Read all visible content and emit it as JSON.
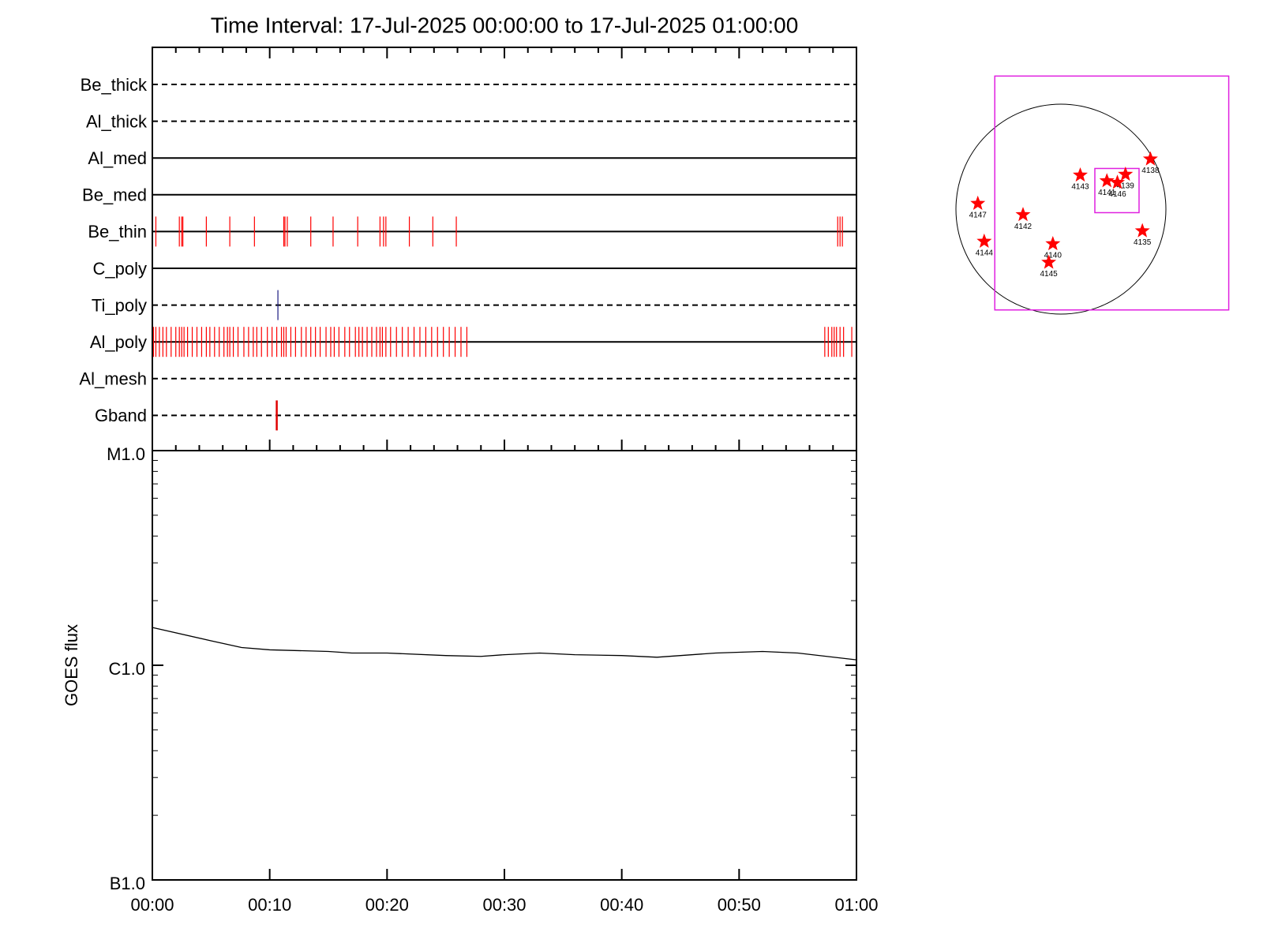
{
  "chart_data": [
    {
      "type": "timeline",
      "title": "Time Interval: 17-Jul-2025 00:00:00 to 17-Jul-2025 01:00:00",
      "xlim": [
        0,
        60
      ],
      "rows": [
        {
          "name": "Be_thick",
          "line": "dashed",
          "color": "#ff0000",
          "events": []
        },
        {
          "name": "Al_thick",
          "line": "dashed",
          "color": "#ff0000",
          "events": []
        },
        {
          "name": "Al_med",
          "line": "solid",
          "color": "#ff0000",
          "events": []
        },
        {
          "name": "Be_med",
          "line": "solid",
          "color": "#ff0000",
          "events": []
        },
        {
          "name": "Be_thin",
          "line": "solid",
          "color": "#ff0000",
          "events": [
            0.3,
            2.3,
            2.5,
            2.6,
            4.6,
            6.6,
            8.7,
            11.2,
            11.3,
            11.5,
            13.5,
            15.4,
            17.5,
            19.4,
            19.7,
            19.9,
            21.9,
            23.9,
            25.9,
            58.4,
            58.6,
            58.8
          ]
        },
        {
          "name": "C_poly",
          "line": "solid",
          "color": "#ff0000",
          "events": []
        },
        {
          "name": "Ti_poly",
          "line": "dashed",
          "color": "#1a1a80",
          "events": [
            10.7
          ]
        },
        {
          "name": "Al_poly",
          "line": "solid",
          "color": "#ff0000",
          "events": [
            0.1,
            0.3,
            0.6,
            0.9,
            1.2,
            1.6,
            2.0,
            2.3,
            2.5,
            2.7,
            3.0,
            3.4,
            3.8,
            4.2,
            4.6,
            4.9,
            5.3,
            5.7,
            6.1,
            6.4,
            6.6,
            6.9,
            7.3,
            7.8,
            8.2,
            8.6,
            8.9,
            9.3,
            9.8,
            10.2,
            10.6,
            11.0,
            11.2,
            11.4,
            11.8,
            12.2,
            12.7,
            13.1,
            13.5,
            13.9,
            14.3,
            14.8,
            15.2,
            15.5,
            15.9,
            16.4,
            16.8,
            17.3,
            17.6,
            17.9,
            18.3,
            18.7,
            19.1,
            19.4,
            19.6,
            19.9,
            20.3,
            20.8,
            21.3,
            21.8,
            22.3,
            22.8,
            23.3,
            23.8,
            24.3,
            24.8,
            25.3,
            25.8,
            26.3,
            26.8,
            57.3,
            57.6,
            57.9,
            58.1,
            58.3,
            58.6,
            58.9,
            59.6
          ]
        },
        {
          "name": "Al_mesh",
          "line": "dashed",
          "color": "#ff0000",
          "events": []
        },
        {
          "name": "Gband",
          "line": "dashed",
          "color": "#e00000",
          "events": [
            10.6
          ]
        }
      ]
    },
    {
      "type": "line",
      "y_label": "GOES flux",
      "x": [
        0,
        5,
        7.6,
        10,
        15,
        17,
        20,
        25,
        28,
        30,
        33,
        36,
        40,
        43,
        45,
        48,
        52,
        55,
        60
      ],
      "values": [
        1.5e-06,
        1.3e-06,
        1.21e-06,
        1.18e-06,
        1.16e-06,
        1.14e-06,
        1.14e-06,
        1.11e-06,
        1.1e-06,
        1.12e-06,
        1.14e-06,
        1.12e-06,
        1.11e-06,
        1.09e-06,
        1.11e-06,
        1.14e-06,
        1.16e-06,
        1.14e-06,
        1.06e-06
      ],
      "color": "#000000",
      "xlim": [
        0,
        60
      ],
      "xticks": [
        {
          "value": 0,
          "label": "00:00"
        },
        {
          "value": 10,
          "label": "00:10"
        },
        {
          "value": 20,
          "label": "00:20"
        },
        {
          "value": 30,
          "label": "00:30"
        },
        {
          "value": 40,
          "label": "00:40"
        },
        {
          "value": 50,
          "label": "00:50"
        },
        {
          "value": 60,
          "label": "01:00"
        }
      ],
      "ylim": [
        1e-07,
        1e-05
      ],
      "yticks": [
        {
          "value": 1e-05,
          "label": "M1.0"
        },
        {
          "value": 1e-06,
          "label": "C1.0"
        },
        {
          "value": 1e-07,
          "label": "B1.0"
        }
      ],
      "log_y": true
    },
    {
      "type": "map",
      "solar_radius": 950,
      "boxes": [
        {
          "center": [
            460,
            146
          ],
          "size": 2117,
          "color": "#e020e0"
        },
        {
          "center": [
            507,
            168
          ],
          "size": 400,
          "color": "#e020e0"
        }
      ],
      "marker_color": "#ff0000",
      "points": [
        {
          "name": "4138",
          "x": 810,
          "y": 453
        },
        {
          "name": "4143",
          "x": 175,
          "y": 307
        },
        {
          "name": "4139",
          "x": 584,
          "y": 314
        },
        {
          "name": "4141",
          "x": 416,
          "y": 256
        },
        {
          "name": "4146",
          "x": 511,
          "y": 241
        },
        {
          "name": "4147",
          "x": -752,
          "y": 51
        },
        {
          "name": "4142",
          "x": -343,
          "y": -51
        },
        {
          "name": "4135",
          "x": 737,
          "y": -197
        },
        {
          "name": "4140",
          "x": -73,
          "y": -314
        },
        {
          "name": "4144",
          "x": -694,
          "y": -292
        },
        {
          "name": "4145",
          "x": -110,
          "y": -482
        }
      ]
    }
  ]
}
